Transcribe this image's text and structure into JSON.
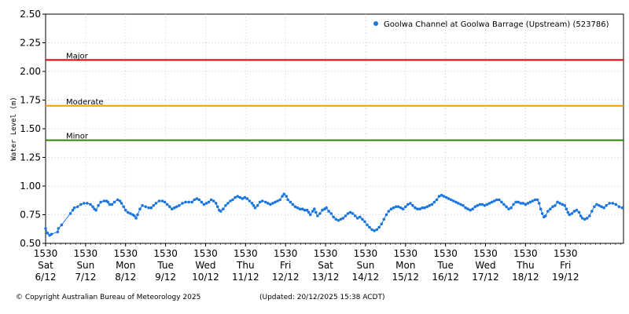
{
  "chart_data": {
    "type": "scatter",
    "ylabel": "Water Level (m)",
    "ylim": [
      0.5,
      2.5
    ],
    "y_ticks": [
      "0.50",
      "0.75",
      "1.00",
      "1.25",
      "1.50",
      "1.75",
      "2.00",
      "2.25",
      "2.50"
    ],
    "y_tick_values": [
      0.5,
      0.75,
      1.0,
      1.25,
      1.5,
      1.75,
      2.0,
      2.25,
      2.5
    ],
    "xlim": [
      0,
      14.45
    ],
    "x_ticks": [
      {
        "time": "1530",
        "day": "Sat",
        "date": "6/12"
      },
      {
        "time": "1530",
        "day": "Sun",
        "date": "7/12"
      },
      {
        "time": "1530",
        "day": "Mon",
        "date": "8/12"
      },
      {
        "time": "1530",
        "day": "Tue",
        "date": "9/12"
      },
      {
        "time": "1530",
        "day": "Wed",
        "date": "10/12"
      },
      {
        "time": "1530",
        "day": "Thu",
        "date": "11/12"
      },
      {
        "time": "1530",
        "day": "Fri",
        "date": "12/12"
      },
      {
        "time": "1530",
        "day": "Sat",
        "date": "13/12"
      },
      {
        "time": "1530",
        "day": "Sun",
        "date": "14/12"
      },
      {
        "time": "1530",
        "day": "Mon",
        "date": "15/12"
      },
      {
        "time": "1530",
        "day": "Tue",
        "date": "16/12"
      },
      {
        "time": "1530",
        "day": "Wed",
        "date": "17/12"
      },
      {
        "time": "1530",
        "day": "Thu",
        "date": "18/12"
      },
      {
        "time": "1530",
        "day": "Fri",
        "date": "19/12"
      }
    ],
    "thresholds": [
      {
        "name": "Major",
        "value": 2.1,
        "color": "#e00000"
      },
      {
        "name": "Moderate",
        "value": 1.7,
        "color": "#ff9900"
      },
      {
        "name": "Minor",
        "value": 1.4,
        "color": "#2a8a00"
      }
    ],
    "series": [
      {
        "name": "Goolwa Channel at Goolwa Barrage (Upstream) (523786)",
        "color": "#1a75e0",
        "points": [
          [
            0.0,
            0.63
          ],
          [
            0.05,
            0.59
          ],
          [
            0.1,
            0.57
          ],
          [
            0.15,
            0.58
          ],
          [
            0.3,
            0.6
          ],
          [
            0.32,
            0.63
          ],
          [
            0.4,
            0.66
          ],
          [
            0.62,
            0.76
          ],
          [
            0.68,
            0.79
          ],
          [
            0.72,
            0.81
          ],
          [
            0.8,
            0.82
          ],
          [
            0.88,
            0.84
          ],
          [
            0.96,
            0.85
          ],
          [
            1.04,
            0.85
          ],
          [
            1.12,
            0.84
          ],
          [
            1.18,
            0.82
          ],
          [
            1.22,
            0.8
          ],
          [
            1.26,
            0.79
          ],
          [
            1.32,
            0.83
          ],
          [
            1.38,
            0.86
          ],
          [
            1.46,
            0.87
          ],
          [
            1.52,
            0.87
          ],
          [
            1.56,
            0.86
          ],
          [
            1.6,
            0.84
          ],
          [
            1.66,
            0.84
          ],
          [
            1.72,
            0.86
          ],
          [
            1.8,
            0.88
          ],
          [
            1.86,
            0.87
          ],
          [
            1.9,
            0.85
          ],
          [
            1.95,
            0.82
          ],
          [
            2.0,
            0.79
          ],
          [
            2.06,
            0.77
          ],
          [
            2.12,
            0.76
          ],
          [
            2.18,
            0.75
          ],
          [
            2.22,
            0.74
          ],
          [
            2.26,
            0.72
          ],
          [
            2.3,
            0.75
          ],
          [
            2.36,
            0.8
          ],
          [
            2.42,
            0.83
          ],
          [
            2.5,
            0.82
          ],
          [
            2.58,
            0.81
          ],
          [
            2.64,
            0.81
          ],
          [
            2.7,
            0.83
          ],
          [
            2.76,
            0.85
          ],
          [
            2.84,
            0.87
          ],
          [
            2.92,
            0.87
          ],
          [
            2.98,
            0.86
          ],
          [
            3.04,
            0.84
          ],
          [
            3.1,
            0.82
          ],
          [
            3.16,
            0.8
          ],
          [
            3.22,
            0.81
          ],
          [
            3.28,
            0.82
          ],
          [
            3.34,
            0.83
          ],
          [
            3.42,
            0.85
          ],
          [
            3.5,
            0.86
          ],
          [
            3.58,
            0.86
          ],
          [
            3.66,
            0.86
          ],
          [
            3.72,
            0.88
          ],
          [
            3.78,
            0.89
          ],
          [
            3.84,
            0.88
          ],
          [
            3.9,
            0.86
          ],
          [
            3.96,
            0.84
          ],
          [
            4.02,
            0.85
          ],
          [
            4.08,
            0.86
          ],
          [
            4.14,
            0.88
          ],
          [
            4.2,
            0.87
          ],
          [
            4.26,
            0.85
          ],
          [
            4.3,
            0.82
          ],
          [
            4.34,
            0.79
          ],
          [
            4.38,
            0.78
          ],
          [
            4.44,
            0.8
          ],
          [
            4.5,
            0.83
          ],
          [
            4.56,
            0.85
          ],
          [
            4.62,
            0.87
          ],
          [
            4.68,
            0.88
          ],
          [
            4.74,
            0.9
          ],
          [
            4.8,
            0.91
          ],
          [
            4.86,
            0.9
          ],
          [
            4.92,
            0.89
          ],
          [
            4.98,
            0.9
          ],
          [
            5.04,
            0.89
          ],
          [
            5.1,
            0.87
          ],
          [
            5.16,
            0.85
          ],
          [
            5.2,
            0.83
          ],
          [
            5.24,
            0.81
          ],
          [
            5.3,
            0.83
          ],
          [
            5.36,
            0.86
          ],
          [
            5.42,
            0.87
          ],
          [
            5.5,
            0.86
          ],
          [
            5.56,
            0.85
          ],
          [
            5.62,
            0.84
          ],
          [
            5.68,
            0.85
          ],
          [
            5.74,
            0.86
          ],
          [
            5.8,
            0.87
          ],
          [
            5.86,
            0.88
          ],
          [
            5.92,
            0.91
          ],
          [
            5.96,
            0.93
          ],
          [
            6.02,
            0.91
          ],
          [
            6.06,
            0.88
          ],
          [
            6.12,
            0.86
          ],
          [
            6.18,
            0.84
          ],
          [
            6.24,
            0.82
          ],
          [
            6.3,
            0.81
          ],
          [
            6.36,
            0.8
          ],
          [
            6.42,
            0.8
          ],
          [
            6.48,
            0.79
          ],
          [
            6.54,
            0.79
          ],
          [
            6.58,
            0.77
          ],
          [
            6.62,
            0.75
          ],
          [
            6.68,
            0.78
          ],
          [
            6.72,
            0.8
          ],
          [
            6.76,
            0.77
          ],
          [
            6.8,
            0.74
          ],
          [
            6.86,
            0.76
          ],
          [
            6.92,
            0.79
          ],
          [
            6.98,
            0.8
          ],
          [
            7.02,
            0.81
          ],
          [
            7.08,
            0.78
          ],
          [
            7.14,
            0.76
          ],
          [
            7.2,
            0.73
          ],
          [
            7.26,
            0.71
          ],
          [
            7.32,
            0.7
          ],
          [
            7.38,
            0.71
          ],
          [
            7.44,
            0.72
          ],
          [
            7.5,
            0.74
          ],
          [
            7.56,
            0.76
          ],
          [
            7.62,
            0.77
          ],
          [
            7.68,
            0.76
          ],
          [
            7.74,
            0.74
          ],
          [
            7.8,
            0.72
          ],
          [
            7.86,
            0.73
          ],
          [
            7.92,
            0.71
          ],
          [
            7.98,
            0.69
          ],
          [
            8.04,
            0.66
          ],
          [
            8.1,
            0.64
          ],
          [
            8.16,
            0.62
          ],
          [
            8.22,
            0.61
          ],
          [
            8.28,
            0.62
          ],
          [
            8.34,
            0.64
          ],
          [
            8.4,
            0.67
          ],
          [
            8.46,
            0.71
          ],
          [
            8.52,
            0.75
          ],
          [
            8.58,
            0.78
          ],
          [
            8.64,
            0.8
          ],
          [
            8.7,
            0.81
          ],
          [
            8.76,
            0.82
          ],
          [
            8.82,
            0.82
          ],
          [
            8.88,
            0.81
          ],
          [
            8.94,
            0.8
          ],
          [
            9.0,
            0.82
          ],
          [
            9.06,
            0.84
          ],
          [
            9.12,
            0.85
          ],
          [
            9.18,
            0.83
          ],
          [
            9.24,
            0.81
          ],
          [
            9.3,
            0.8
          ],
          [
            9.36,
            0.8
          ],
          [
            9.42,
            0.81
          ],
          [
            9.48,
            0.81
          ],
          [
            9.54,
            0.82
          ],
          [
            9.6,
            0.83
          ],
          [
            9.66,
            0.84
          ],
          [
            9.72,
            0.86
          ],
          [
            9.78,
            0.88
          ],
          [
            9.84,
            0.91
          ],
          [
            9.9,
            0.92
          ],
          [
            9.96,
            0.91
          ],
          [
            10.02,
            0.9
          ],
          [
            10.08,
            0.89
          ],
          [
            10.14,
            0.88
          ],
          [
            10.2,
            0.87
          ],
          [
            10.26,
            0.86
          ],
          [
            10.32,
            0.85
          ],
          [
            10.38,
            0.84
          ],
          [
            10.44,
            0.83
          ],
          [
            10.5,
            0.81
          ],
          [
            10.56,
            0.8
          ],
          [
            10.62,
            0.79
          ],
          [
            10.68,
            0.8
          ],
          [
            10.74,
            0.82
          ],
          [
            10.8,
            0.83
          ],
          [
            10.86,
            0.84
          ],
          [
            10.92,
            0.84
          ],
          [
            10.98,
            0.83
          ],
          [
            11.04,
            0.84
          ],
          [
            11.1,
            0.85
          ],
          [
            11.16,
            0.86
          ],
          [
            11.22,
            0.87
          ],
          [
            11.28,
            0.88
          ],
          [
            11.34,
            0.88
          ],
          [
            11.4,
            0.86
          ],
          [
            11.46,
            0.84
          ],
          [
            11.52,
            0.82
          ],
          [
            11.58,
            0.8
          ],
          [
            11.64,
            0.81
          ],
          [
            11.7,
            0.84
          ],
          [
            11.76,
            0.86
          ],
          [
            11.82,
            0.86
          ],
          [
            11.88,
            0.85
          ],
          [
            11.94,
            0.85
          ],
          [
            12.0,
            0.84
          ],
          [
            12.06,
            0.85
          ],
          [
            12.12,
            0.86
          ],
          [
            12.18,
            0.87
          ],
          [
            12.24,
            0.88
          ],
          [
            12.3,
            0.88
          ],
          [
            12.34,
            0.85
          ],
          [
            12.38,
            0.8
          ],
          [
            12.42,
            0.76
          ],
          [
            12.46,
            0.73
          ],
          [
            12.5,
            0.74
          ],
          [
            12.56,
            0.78
          ],
          [
            12.62,
            0.8
          ],
          [
            12.68,
            0.82
          ],
          [
            12.74,
            0.83
          ],
          [
            12.8,
            0.86
          ],
          [
            12.86,
            0.85
          ],
          [
            12.92,
            0.84
          ],
          [
            12.98,
            0.83
          ],
          [
            13.02,
            0.8
          ],
          [
            13.06,
            0.77
          ],
          [
            13.1,
            0.75
          ],
          [
            13.16,
            0.76
          ],
          [
            13.22,
            0.78
          ],
          [
            13.28,
            0.79
          ],
          [
            13.34,
            0.77
          ],
          [
            13.38,
            0.74
          ],
          [
            13.42,
            0.72
          ],
          [
            13.48,
            0.71
          ],
          [
            13.54,
            0.72
          ],
          [
            13.6,
            0.74
          ],
          [
            13.66,
            0.78
          ],
          [
            13.72,
            0.82
          ],
          [
            13.78,
            0.84
          ],
          [
            13.84,
            0.83
          ],
          [
            13.9,
            0.82
          ],
          [
            13.96,
            0.81
          ],
          [
            14.02,
            0.83
          ],
          [
            14.1,
            0.85
          ],
          [
            14.18,
            0.85
          ],
          [
            14.26,
            0.84
          ],
          [
            14.34,
            0.82
          ],
          [
            14.42,
            0.81
          ]
        ]
      }
    ]
  },
  "footer": {
    "copyright": "© Copyright Australian Bureau of Meteorology 2025",
    "updated": "(Updated: 20/12/2025 15:38 ACDT)"
  }
}
